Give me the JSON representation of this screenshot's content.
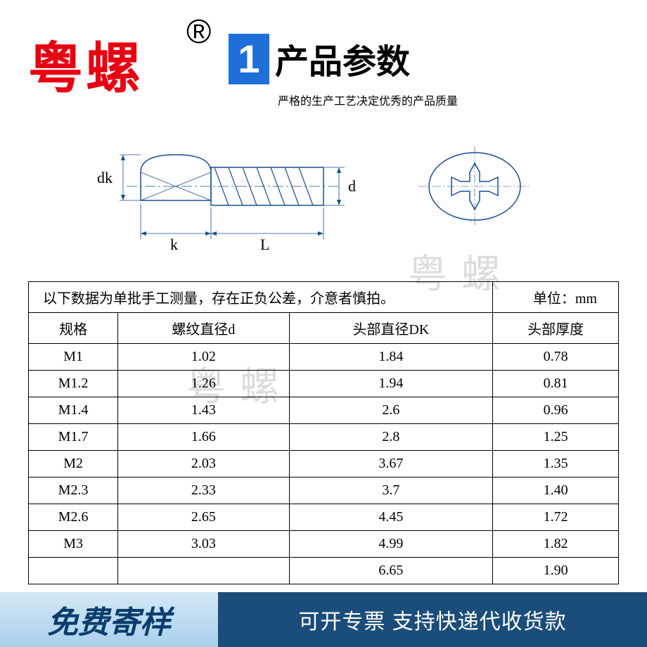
{
  "brand": "粤螺",
  "registered": "®",
  "header": {
    "num": "1",
    "title": "产品参数",
    "subtitle": "严格的生产工艺决定优秀的产品质量"
  },
  "diagram": {
    "labels": {
      "dk": "dk",
      "k": "k",
      "L": "L",
      "d": "d"
    }
  },
  "watermark": "粤螺",
  "table": {
    "note": "以下数据为单批手工测量，存在正负公差，介意者慎拍。",
    "unit": "单位：mm",
    "headers": [
      "规格",
      "螺纹直径d",
      "头部直径DK",
      "头部厚度"
    ],
    "rows": [
      [
        "M1",
        "1.02",
        "1.84",
        "0.78"
      ],
      [
        "M1.2",
        "1.26",
        "1.94",
        "0.81"
      ],
      [
        "M1.4",
        "1.43",
        "2.6",
        "0.96"
      ],
      [
        "M1.7",
        "1.66",
        "2.8",
        "1.25"
      ],
      [
        "M2",
        "2.03",
        "3.67",
        "1.35"
      ],
      [
        "M2.3",
        "2.33",
        "3.7",
        "1.40"
      ],
      [
        "M2.6",
        "2.65",
        "4.45",
        "1.72"
      ],
      [
        "M3",
        "3.03",
        "4.99",
        "1.82"
      ],
      [
        "",
        "",
        "6.65",
        "1.90"
      ]
    ]
  },
  "footer": {
    "left": "免费寄样",
    "right": "可开专票 支持快递代收货款"
  },
  "colors": {
    "brand_red": "#e60012",
    "header_blue": "#1e6fd9",
    "footer_light": "#a8d0ec",
    "footer_dark": "#1a4d7a",
    "watermark": "#dcdcdc"
  }
}
